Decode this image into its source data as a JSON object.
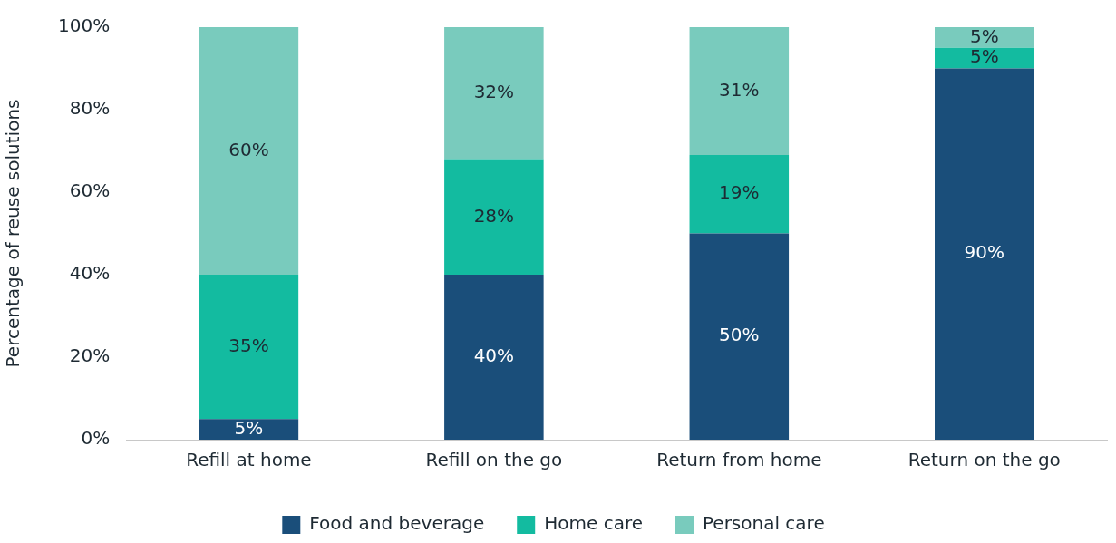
{
  "chart_data": {
    "type": "bar",
    "stacked": true,
    "ylabel": "Percentage of reuse solutions",
    "categories": [
      "Refill at home",
      "Refill on the go",
      "Return from home",
      "Return on the go"
    ],
    "series": [
      {
        "name": "Food and beverage",
        "color": "#1a4e7a",
        "values": [
          5,
          40,
          50,
          90
        ],
        "value_labels": [
          "5%",
          "40%",
          "50%",
          "90%"
        ]
      },
      {
        "name": "Home care",
        "color": "#13bba0",
        "values": [
          35,
          28,
          19,
          5
        ],
        "value_labels": [
          "35%",
          "28%",
          "19%",
          "5%"
        ]
      },
      {
        "name": "Personal care",
        "color": "#79cbbd",
        "values": [
          60,
          32,
          31,
          5
        ],
        "value_labels": [
          "60%",
          "32%",
          "31%",
          "5%"
        ]
      }
    ],
    "ylim": [
      0,
      100
    ],
    "yticks": [
      {
        "value": 0,
        "label": "0%"
      },
      {
        "value": 20,
        "label": "20%"
      },
      {
        "value": 40,
        "label": "40%"
      },
      {
        "value": 60,
        "label": "60%"
      },
      {
        "value": 80,
        "label": "80%"
      },
      {
        "value": 100,
        "label": "100%"
      }
    ],
    "grid": false,
    "legend": "bottom"
  }
}
